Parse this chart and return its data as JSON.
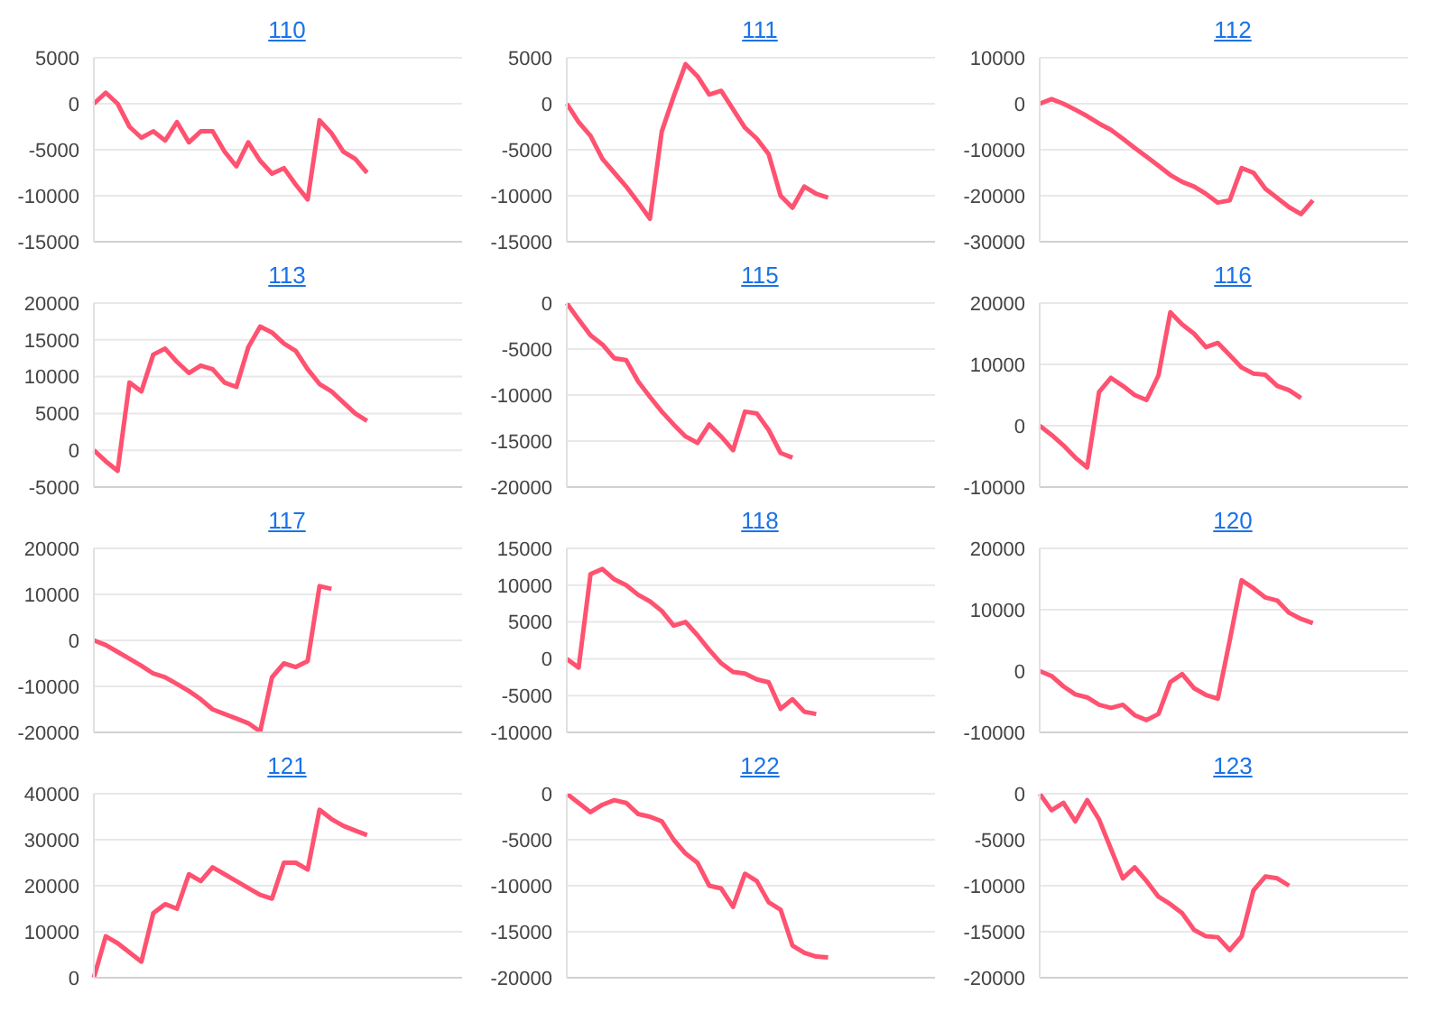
{
  "chart_data": [
    {
      "type": "line",
      "title": "110",
      "categories": [
        null,
        null,
        null,
        null,
        null,
        null,
        null,
        null,
        null,
        null,
        null,
        null,
        null,
        null,
        null,
        null,
        null,
        null,
        null,
        null,
        null,
        null,
        null,
        null,
        null,
        null,
        null,
        null,
        null,
        null,
        null,
        null
      ],
      "series": [
        {
          "color": "#ff5271",
          "values": [
            0,
            1200,
            0,
            -2500,
            -3700,
            -3000,
            -4000,
            -2000,
            -4200,
            -3000,
            -3000,
            -5200,
            -6800,
            -4200,
            -6200,
            -7600,
            -7000,
            -8800,
            -10400,
            -1800,
            -3200,
            -5200,
            -6000,
            -7500,
            null,
            null,
            null,
            null,
            null,
            null,
            null,
            null
          ]
        }
      ],
      "ylim": [
        -15000,
        5000
      ],
      "yticks": [
        -15000,
        -10000,
        -5000,
        0,
        5000
      ],
      "grid": "y",
      "tick_labels": "y"
    },
    {
      "type": "line",
      "title": "111",
      "categories": [
        null,
        null,
        null,
        null,
        null,
        null,
        null,
        null,
        null,
        null,
        null,
        null,
        null,
        null,
        null,
        null,
        null,
        null,
        null,
        null,
        null,
        null,
        null,
        null,
        null,
        null,
        null,
        null,
        null,
        null,
        null,
        null
      ],
      "series": [
        {
          "color": "#ff5271",
          "values": [
            0,
            -2000,
            -3500,
            -6000,
            -7500,
            -9000,
            -10700,
            -12500,
            -3000,
            800,
            4300,
            3000,
            1000,
            1400,
            -600,
            -2600,
            -3800,
            -5500,
            -10000,
            -11300,
            -9000,
            -9800,
            -10200,
            null,
            null,
            null,
            null,
            null,
            null,
            null,
            null,
            null
          ]
        }
      ],
      "ylim": [
        -15000,
        5000
      ],
      "yticks": [
        -15000,
        -10000,
        -5000,
        0,
        5000
      ],
      "grid": "y",
      "tick_labels": "y"
    },
    {
      "type": "line",
      "title": "112",
      "categories": [
        null,
        null,
        null,
        null,
        null,
        null,
        null,
        null,
        null,
        null,
        null,
        null,
        null,
        null,
        null,
        null,
        null,
        null,
        null,
        null,
        null,
        null,
        null,
        null,
        null,
        null,
        null,
        null,
        null,
        null,
        null,
        null
      ],
      "series": [
        {
          "color": "#ff5271",
          "values": [
            0,
            1000,
            0,
            -1300,
            -2700,
            -4300,
            -5700,
            -7600,
            -9600,
            -11500,
            -13500,
            -15500,
            -17000,
            -18000,
            -19600,
            -21500,
            -21000,
            -14000,
            -15000,
            -18500,
            -20500,
            -22500,
            -24000,
            -21000,
            null,
            null,
            null,
            null,
            null,
            null,
            null,
            null
          ]
        }
      ],
      "ylim": [
        -30000,
        10000
      ],
      "yticks": [
        -30000,
        -20000,
        -10000,
        0,
        10000
      ],
      "grid": "y",
      "tick_labels": "y"
    },
    {
      "type": "line",
      "title": "113",
      "categories": [
        null,
        null,
        null,
        null,
        null,
        null,
        null,
        null,
        null,
        null,
        null,
        null,
        null,
        null,
        null,
        null,
        null,
        null,
        null,
        null,
        null,
        null,
        null,
        null,
        null,
        null,
        null,
        null,
        null,
        null,
        null,
        null
      ],
      "series": [
        {
          "color": "#ff5271",
          "values": [
            0,
            -1500,
            -2800,
            9200,
            8000,
            13000,
            13800,
            12000,
            10500,
            11500,
            11000,
            9200,
            8600,
            14000,
            16800,
            16000,
            14500,
            13500,
            11000,
            9000,
            8000,
            6500,
            5000,
            4000,
            null,
            null,
            null,
            null,
            null,
            null,
            null,
            null
          ]
        }
      ],
      "ylim": [
        -5000,
        20000
      ],
      "yticks": [
        -5000,
        0,
        5000,
        10000,
        15000,
        20000
      ],
      "grid": "y",
      "tick_labels": "y"
    },
    {
      "type": "line",
      "title": "115",
      "categories": [
        null,
        null,
        null,
        null,
        null,
        null,
        null,
        null,
        null,
        null,
        null,
        null,
        null,
        null,
        null,
        null,
        null,
        null,
        null,
        null,
        null,
        null,
        null,
        null,
        null,
        null,
        null,
        null,
        null,
        null,
        null,
        null
      ],
      "series": [
        {
          "color": "#ff5271",
          "values": [
            0,
            -1800,
            -3500,
            -4500,
            -6000,
            -6200,
            -8500,
            -10200,
            -11800,
            -13200,
            -14500,
            -15200,
            -13200,
            -14500,
            -16000,
            -11800,
            -12000,
            -13800,
            -16300,
            -16800,
            null,
            null,
            null,
            null,
            null,
            null,
            null,
            null,
            null,
            null,
            null,
            null
          ]
        }
      ],
      "ylim": [
        -20000,
        0
      ],
      "yticks": [
        -20000,
        -15000,
        -10000,
        -5000,
        0
      ],
      "grid": "y",
      "tick_labels": "y"
    },
    {
      "type": "line",
      "title": "116",
      "categories": [
        null,
        null,
        null,
        null,
        null,
        null,
        null,
        null,
        null,
        null,
        null,
        null,
        null,
        null,
        null,
        null,
        null,
        null,
        null,
        null,
        null,
        null,
        null,
        null,
        null,
        null,
        null,
        null,
        null,
        null,
        null,
        null
      ],
      "series": [
        {
          "color": "#ff5271",
          "values": [
            0,
            -1500,
            -3200,
            -5200,
            -6800,
            5500,
            7800,
            6500,
            5000,
            4200,
            8200,
            18500,
            16500,
            15000,
            12800,
            13500,
            11500,
            9500,
            8500,
            8300,
            6500,
            5800,
            4500,
            null,
            null,
            null,
            null,
            null,
            null,
            null,
            null,
            null
          ]
        }
      ],
      "ylim": [
        -10000,
        20000
      ],
      "yticks": [
        -10000,
        0,
        10000,
        20000
      ],
      "grid": "y",
      "tick_labels": "y"
    },
    {
      "type": "line",
      "title": "117",
      "categories": [
        null,
        null,
        null,
        null,
        null,
        null,
        null,
        null,
        null,
        null,
        null,
        null,
        null,
        null,
        null,
        null,
        null,
        null,
        null,
        null,
        null,
        null,
        null,
        null,
        null,
        null,
        null,
        null,
        null,
        null,
        null,
        null
      ],
      "series": [
        {
          "color": "#ff5271",
          "values": [
            0,
            -1000,
            -2500,
            -4000,
            -5500,
            -7200,
            -8000,
            -9500,
            -11000,
            -12800,
            -15000,
            -16000,
            -17000,
            -18000,
            -19800,
            -8000,
            -5000,
            -5800,
            -4500,
            11800,
            11200,
            null,
            null,
            null,
            null,
            null,
            null,
            null,
            null,
            null,
            null,
            null
          ]
        }
      ],
      "ylim": [
        -20000,
        20000
      ],
      "yticks": [
        -20000,
        -10000,
        0,
        10000,
        20000
      ],
      "grid": "y",
      "tick_labels": "y"
    },
    {
      "type": "line",
      "title": "118",
      "categories": [
        null,
        null,
        null,
        null,
        null,
        null,
        null,
        null,
        null,
        null,
        null,
        null,
        null,
        null,
        null,
        null,
        null,
        null,
        null,
        null,
        null,
        null,
        null,
        null,
        null,
        null,
        null,
        null,
        null,
        null,
        null,
        null
      ],
      "series": [
        {
          "color": "#ff5271",
          "values": [
            0,
            -1200,
            11500,
            12200,
            10800,
            10000,
            8700,
            7800,
            6500,
            4500,
            5000,
            3200,
            1200,
            -600,
            -1800,
            -2000,
            -2800,
            -3200,
            -6800,
            -5500,
            -7200,
            -7500,
            null,
            null,
            null,
            null,
            null,
            null,
            null,
            null,
            null,
            null
          ]
        }
      ],
      "ylim": [
        -10000,
        15000
      ],
      "yticks": [
        -10000,
        -5000,
        0,
        5000,
        10000,
        15000
      ],
      "grid": "y",
      "tick_labels": "y"
    },
    {
      "type": "line",
      "title": "120",
      "categories": [
        null,
        null,
        null,
        null,
        null,
        null,
        null,
        null,
        null,
        null,
        null,
        null,
        null,
        null,
        null,
        null,
        null,
        null,
        null,
        null,
        null,
        null,
        null,
        null,
        null,
        null,
        null,
        null,
        null,
        null,
        null,
        null
      ],
      "series": [
        {
          "color": "#ff5271",
          "values": [
            0,
            -800,
            -2500,
            -3800,
            -4300,
            -5500,
            -6000,
            -5500,
            -7200,
            -8000,
            -7000,
            -1800,
            -500,
            -2800,
            -3900,
            -4500,
            5000,
            14800,
            13500,
            12000,
            11500,
            9500,
            8500,
            7800,
            null,
            null,
            null,
            null,
            null,
            null,
            null,
            null
          ]
        }
      ],
      "ylim": [
        -10000,
        20000
      ],
      "yticks": [
        -10000,
        0,
        10000,
        20000
      ],
      "grid": "y",
      "tick_labels": "y"
    },
    {
      "type": "line",
      "title": "121",
      "categories": [
        null,
        null,
        null,
        null,
        null,
        null,
        null,
        null,
        null,
        null,
        null,
        null,
        null,
        null,
        null,
        null,
        null,
        null,
        null,
        null,
        null,
        null,
        null,
        null,
        null,
        null,
        null,
        null,
        null,
        null,
        null,
        null
      ],
      "series": [
        {
          "color": "#ff5271",
          "values": [
            0,
            9000,
            7500,
            5500,
            3500,
            14000,
            16000,
            15000,
            22500,
            21000,
            24000,
            22500,
            21000,
            19500,
            18000,
            17200,
            25000,
            25000,
            23500,
            36500,
            34500,
            33000,
            32000,
            31000,
            null,
            null,
            null,
            null,
            null,
            null,
            null,
            null
          ]
        }
      ],
      "ylim": [
        0,
        40000
      ],
      "yticks": [
        0,
        10000,
        20000,
        30000,
        40000
      ],
      "grid": "y",
      "tick_labels": "y"
    },
    {
      "type": "line",
      "title": "122",
      "categories": [
        null,
        null,
        null,
        null,
        null,
        null,
        null,
        null,
        null,
        null,
        null,
        null,
        null,
        null,
        null,
        null,
        null,
        null,
        null,
        null,
        null,
        null,
        null,
        null,
        null,
        null,
        null,
        null,
        null,
        null,
        null,
        null
      ],
      "series": [
        {
          "color": "#ff5271",
          "values": [
            0,
            -1000,
            -2000,
            -1200,
            -700,
            -1000,
            -2200,
            -2500,
            -3000,
            -5000,
            -6500,
            -7500,
            -10000,
            -10300,
            -12300,
            -8700,
            -9500,
            -11800,
            -12600,
            -16500,
            -17300,
            -17700,
            -17800,
            null,
            null,
            null,
            null,
            null,
            null,
            null,
            null,
            null
          ]
        }
      ],
      "ylim": [
        -20000,
        0
      ],
      "yticks": [
        -20000,
        -15000,
        -10000,
        -5000,
        0
      ],
      "grid": "y",
      "tick_labels": "y"
    },
    {
      "type": "line",
      "title": "123",
      "categories": [
        null,
        null,
        null,
        null,
        null,
        null,
        null,
        null,
        null,
        null,
        null,
        null,
        null,
        null,
        null,
        null,
        null,
        null,
        null,
        null,
        null,
        null,
        null,
        null,
        null,
        null,
        null,
        null,
        null,
        null,
        null,
        null
      ],
      "series": [
        {
          "color": "#ff5271",
          "values": [
            0,
            -1800,
            -1000,
            -3000,
            -700,
            -2800,
            -6000,
            -9200,
            -8000,
            -9500,
            -11200,
            -12000,
            -13000,
            -14800,
            -15500,
            -15600,
            -17000,
            -15500,
            -10500,
            -9000,
            -9200,
            -10000,
            null,
            null,
            null,
            null,
            null,
            null,
            null,
            null,
            null,
            null
          ]
        }
      ],
      "ylim": [
        -20000,
        0
      ],
      "yticks": [
        -20000,
        -15000,
        -10000,
        -5000,
        0
      ],
      "grid": "y",
      "tick_labels": "y"
    }
  ]
}
